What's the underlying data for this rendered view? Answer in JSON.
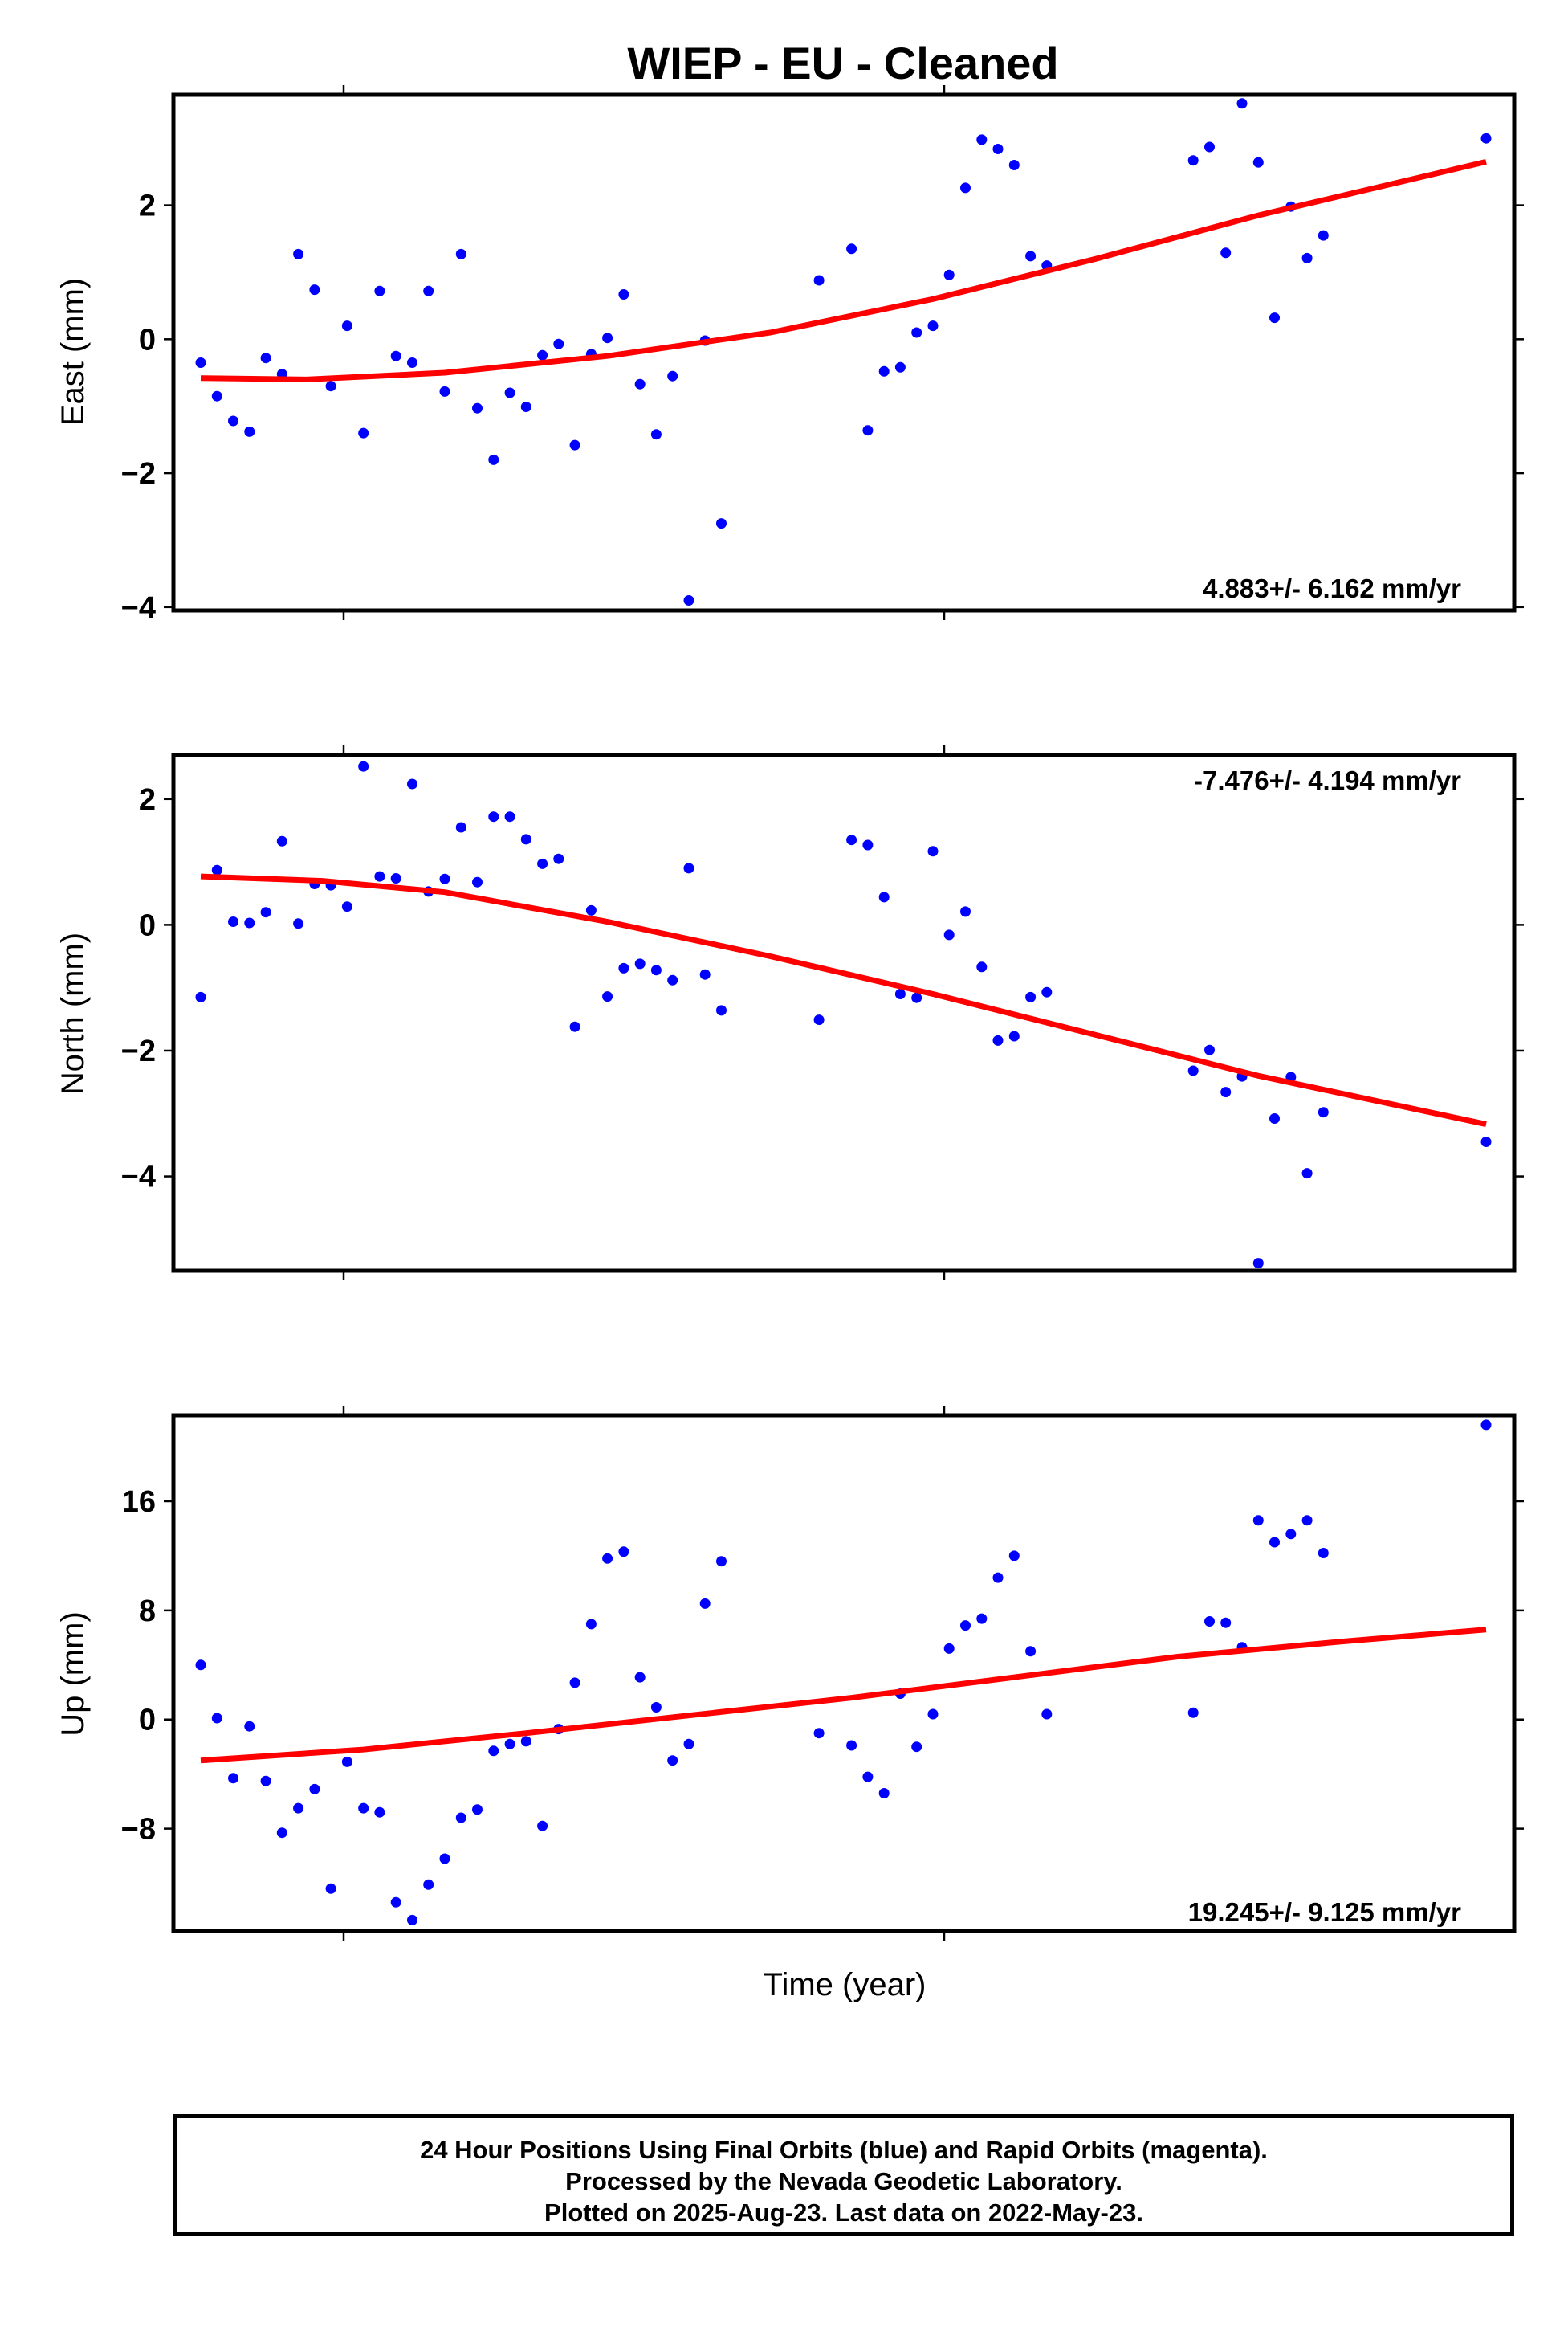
{
  "title": "WIEP  - EU - Cleaned",
  "xlabel": "Time (year)",
  "info_lines": [
    "24 Hour Positions Using Final Orbits (blue) and Rapid Orbits (magenta).",
    "Processed by the Nevada Geodetic Laboratory.",
    "Plotted on 2025-Aug-23. Last data on 2022-May-23."
  ],
  "colors": {
    "points": "#0000ff",
    "trend": "#ff0000"
  },
  "chart_data": [
    {
      "type": "scatter",
      "name": "east",
      "ylabel": "East (mm)",
      "rate_label": "4.883+/- 6.162 mm/yr",
      "rate_position": "bottom-right",
      "ylim": [
        -4.05,
        3.65
      ],
      "yticks": [
        -4,
        -2,
        0,
        2
      ],
      "ytick_labels": [
        "−4",
        "−2",
        "0",
        "2"
      ],
      "points": [
        [
          0.0,
          -0.35
        ],
        [
          0.2,
          -0.85
        ],
        [
          0.4,
          -1.22
        ],
        [
          0.6,
          -1.38
        ],
        [
          0.8,
          -0.28
        ],
        [
          1.0,
          -0.52
        ],
        [
          1.2,
          1.27
        ],
        [
          1.4,
          0.74
        ],
        [
          1.6,
          -0.7
        ],
        [
          1.8,
          0.2
        ],
        [
          2.0,
          -1.4
        ],
        [
          2.2,
          0.72
        ],
        [
          2.4,
          -0.25
        ],
        [
          2.6,
          -0.35
        ],
        [
          2.8,
          0.72
        ],
        [
          3.0,
          -0.78
        ],
        [
          3.2,
          1.27
        ],
        [
          3.4,
          -1.03
        ],
        [
          3.6,
          -1.8
        ],
        [
          3.8,
          -0.8
        ],
        [
          4.0,
          -1.01
        ],
        [
          4.2,
          -0.24
        ],
        [
          4.4,
          -0.07
        ],
        [
          4.6,
          -1.58
        ],
        [
          4.8,
          -0.22
        ],
        [
          5.0,
          0.02
        ],
        [
          5.2,
          0.67
        ],
        [
          5.4,
          -0.67
        ],
        [
          5.6,
          -1.42
        ],
        [
          5.8,
          -0.55
        ],
        [
          6.0,
          -3.9
        ],
        [
          6.2,
          -0.02
        ],
        [
          6.4,
          -2.75
        ],
        [
          7.6,
          0.88
        ],
        [
          8.0,
          1.35
        ],
        [
          8.2,
          -1.36
        ],
        [
          8.4,
          -0.48
        ],
        [
          8.6,
          -0.42
        ],
        [
          8.8,
          0.1
        ],
        [
          9.0,
          0.2
        ],
        [
          9.2,
          0.96
        ],
        [
          9.4,
          2.26
        ],
        [
          9.6,
          2.98
        ],
        [
          9.8,
          2.84
        ],
        [
          10.0,
          2.6
        ],
        [
          10.2,
          1.24
        ],
        [
          10.4,
          1.1
        ],
        [
          12.2,
          2.67
        ],
        [
          12.4,
          2.87
        ],
        [
          12.6,
          1.29
        ],
        [
          12.8,
          3.52
        ],
        [
          13.0,
          2.64
        ],
        [
          13.2,
          0.32
        ],
        [
          13.4,
          1.98
        ],
        [
          13.6,
          1.21
        ],
        [
          13.8,
          1.55
        ],
        [
          15.8,
          3.0
        ]
      ],
      "trend": [
        [
          0,
          -0.58
        ],
        [
          1.3,
          -0.6
        ],
        [
          3.0,
          -0.5
        ],
        [
          5.0,
          -0.25
        ],
        [
          7.0,
          0.1
        ],
        [
          9.0,
          0.6
        ],
        [
          11.0,
          1.2
        ],
        [
          13.0,
          1.85
        ],
        [
          15.8,
          2.65
        ]
      ]
    },
    {
      "type": "scatter",
      "name": "north",
      "ylabel": "North (mm)",
      "rate_label": "-7.476+/- 4.194 mm/yr",
      "rate_position": "top-right",
      "ylim": [
        -5.5,
        2.7
      ],
      "yticks": [
        -4,
        -2,
        0,
        2
      ],
      "ytick_labels": [
        "−4",
        "−2",
        "0",
        "2"
      ],
      "points": [
        [
          0.0,
          -1.15
        ],
        [
          0.2,
          0.87
        ],
        [
          0.4,
          0.05
        ],
        [
          0.6,
          0.03
        ],
        [
          0.8,
          0.2
        ],
        [
          1.0,
          1.33
        ],
        [
          1.2,
          0.02
        ],
        [
          1.4,
          0.65
        ],
        [
          1.6,
          0.63
        ],
        [
          1.8,
          0.29
        ],
        [
          2.0,
          2.52
        ],
        [
          2.2,
          0.77
        ],
        [
          2.4,
          0.74
        ],
        [
          2.6,
          2.24
        ],
        [
          2.8,
          0.53
        ],
        [
          3.0,
          0.73
        ],
        [
          3.2,
          1.55
        ],
        [
          3.4,
          0.68
        ],
        [
          3.6,
          1.72
        ],
        [
          3.8,
          1.72
        ],
        [
          4.0,
          1.36
        ],
        [
          4.2,
          0.97
        ],
        [
          4.4,
          1.05
        ],
        [
          4.6,
          -1.62
        ],
        [
          4.8,
          0.23
        ],
        [
          5.0,
          -1.14
        ],
        [
          5.2,
          -0.69
        ],
        [
          5.4,
          -0.62
        ],
        [
          5.6,
          -0.72
        ],
        [
          5.8,
          -0.88
        ],
        [
          6.0,
          0.9
        ],
        [
          6.2,
          -0.79
        ],
        [
          6.4,
          -1.36
        ],
        [
          7.6,
          -1.51
        ],
        [
          8.0,
          1.35
        ],
        [
          8.2,
          1.27
        ],
        [
          8.4,
          0.44
        ],
        [
          8.6,
          -1.1
        ],
        [
          8.8,
          -1.16
        ],
        [
          9.0,
          1.17
        ],
        [
          9.2,
          -0.16
        ],
        [
          9.4,
          0.21
        ],
        [
          9.6,
          -0.67
        ],
        [
          9.8,
          -1.84
        ],
        [
          10.0,
          -1.77
        ],
        [
          10.2,
          -1.15
        ],
        [
          10.4,
          -1.07
        ],
        [
          12.2,
          -2.32
        ],
        [
          12.4,
          -1.99
        ],
        [
          12.6,
          -2.66
        ],
        [
          12.8,
          -2.41
        ],
        [
          13.0,
          -5.38
        ],
        [
          13.2,
          -3.08
        ],
        [
          13.4,
          -2.42
        ],
        [
          13.6,
          -3.95
        ],
        [
          13.8,
          -2.98
        ],
        [
          15.8,
          -3.45
        ]
      ],
      "trend": [
        [
          0,
          0.77
        ],
        [
          1.5,
          0.7
        ],
        [
          3.0,
          0.52
        ],
        [
          5.0,
          0.05
        ],
        [
          7.0,
          -0.5
        ],
        [
          9.0,
          -1.1
        ],
        [
          11.0,
          -1.75
        ],
        [
          13.0,
          -2.4
        ],
        [
          15.8,
          -3.17
        ]
      ]
    },
    {
      "type": "scatter",
      "name": "up",
      "ylabel": "Up (mm)",
      "rate_label": "19.245+/- 9.125 mm/yr",
      "rate_position": "bottom-right",
      "ylim": [
        -15.5,
        22.3
      ],
      "yticks": [
        -8,
        0,
        8,
        16
      ],
      "ytick_labels": [
        "−8",
        "0",
        "8",
        "16"
      ],
      "points": [
        [
          0.0,
          4.0
        ],
        [
          0.2,
          0.1
        ],
        [
          0.4,
          -4.3
        ],
        [
          0.6,
          -0.5
        ],
        [
          0.8,
          -4.5
        ],
        [
          1.0,
          -8.3
        ],
        [
          1.2,
          -6.5
        ],
        [
          1.4,
          -5.1
        ],
        [
          1.6,
          -12.4
        ],
        [
          1.8,
          -3.1
        ],
        [
          2.0,
          -6.5
        ],
        [
          2.2,
          -6.8
        ],
        [
          2.4,
          -13.4
        ],
        [
          2.6,
          -14.7
        ],
        [
          2.8,
          -12.1
        ],
        [
          3.0,
          -10.2
        ],
        [
          3.2,
          -7.2
        ],
        [
          3.4,
          -6.6
        ],
        [
          3.6,
          -2.3
        ],
        [
          3.8,
          -1.8
        ],
        [
          4.0,
          -1.6
        ],
        [
          4.2,
          -7.8
        ],
        [
          4.4,
          -0.7
        ],
        [
          4.6,
          2.7
        ],
        [
          4.8,
          7.0
        ],
        [
          5.0,
          11.8
        ],
        [
          5.2,
          12.3
        ],
        [
          5.4,
          3.1
        ],
        [
          5.6,
          0.9
        ],
        [
          5.8,
          -3.0
        ],
        [
          6.0,
          -1.8
        ],
        [
          6.2,
          8.5
        ],
        [
          6.4,
          11.6
        ],
        [
          7.6,
          -1.0
        ],
        [
          8.0,
          -1.9
        ],
        [
          8.2,
          -4.2
        ],
        [
          8.4,
          -5.4
        ],
        [
          8.6,
          1.9
        ],
        [
          8.8,
          -2.0
        ],
        [
          9.0,
          0.4
        ],
        [
          9.2,
          5.2
        ],
        [
          9.4,
          6.9
        ],
        [
          9.6,
          7.4
        ],
        [
          9.8,
          10.4
        ],
        [
          10.0,
          12.0
        ],
        [
          10.2,
          5.0
        ],
        [
          10.4,
          0.4
        ],
        [
          12.2,
          0.5
        ],
        [
          12.4,
          7.2
        ],
        [
          12.6,
          7.1
        ],
        [
          12.8,
          5.3
        ],
        [
          13.0,
          14.6
        ],
        [
          13.2,
          13.0
        ],
        [
          13.4,
          13.6
        ],
        [
          13.6,
          14.6
        ],
        [
          13.8,
          12.2
        ],
        [
          15.8,
          21.6
        ]
      ],
      "trend": [
        [
          0,
          -3.0
        ],
        [
          2.0,
          -2.2
        ],
        [
          4.0,
          -1.0
        ],
        [
          6.0,
          0.3
        ],
        [
          8.0,
          1.6
        ],
        [
          10.0,
          3.1
        ],
        [
          12.0,
          4.6
        ],
        [
          14.0,
          5.7
        ],
        [
          15.8,
          6.6
        ]
      ]
    }
  ]
}
